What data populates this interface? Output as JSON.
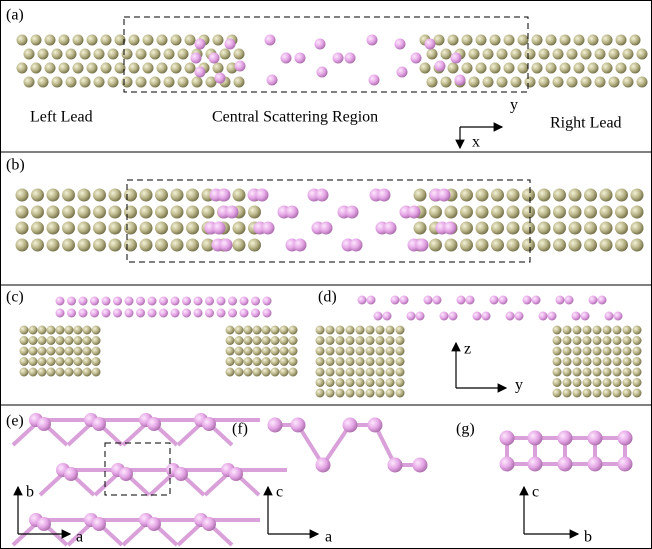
{
  "panels": [
    {
      "label": "(a)",
      "texts": [
        "Left Lead",
        "Central Scattering Region",
        "Right Lead"
      ],
      "axes": [
        "y",
        "x"
      ]
    },
    {
      "label": "(b)"
    },
    {
      "label": "(c)"
    },
    {
      "label": "(d)",
      "axes": [
        "z",
        "y"
      ]
    },
    {
      "label": "(e)",
      "axes": [
        "b",
        "a"
      ]
    },
    {
      "label": "(f)",
      "axes": [
        "c",
        "a"
      ]
    },
    {
      "label": "(g)",
      "axes": [
        "c",
        "b"
      ]
    }
  ]
}
